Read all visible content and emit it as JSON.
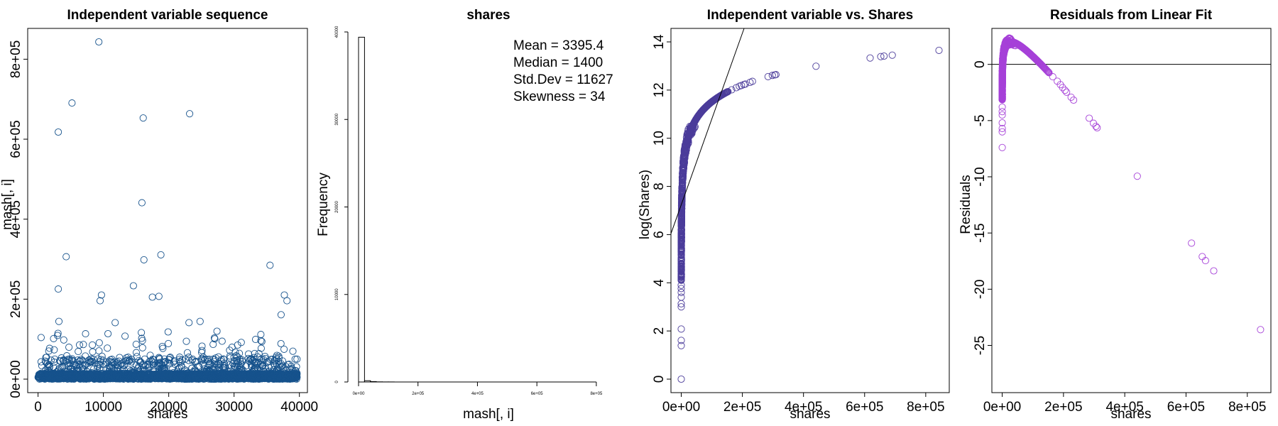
{
  "colors": {
    "panel1": "#16528c",
    "panel3": "#4b3c9a",
    "panel4": "#a641d8"
  },
  "chart_data": [
    {
      "type": "scatter",
      "title": "Independent variable sequence",
      "xlabel": "shares",
      "ylabel": "mash[, i]",
      "xlim": [
        0,
        39644
      ],
      "ylim": [
        0,
        843300
      ],
      "xticks": [
        "0",
        "10000",
        "20000",
        "30000",
        "40000"
      ],
      "yticks": [
        "0e+00",
        "2e+05",
        "4e+05",
        "6e+05",
        "8e+05"
      ],
      "n_points": 39644,
      "highlighted_points": [
        {
          "x": 9300,
          "y": 843300
        },
        {
          "x": 5200,
          "y": 690400
        },
        {
          "x": 3100,
          "y": 617900
        },
        {
          "x": 23200,
          "y": 663600
        },
        {
          "x": 16100,
          "y": 652900
        },
        {
          "x": 15900,
          "y": 441000
        },
        {
          "x": 4300,
          "y": 306100
        },
        {
          "x": 16200,
          "y": 298400
        },
        {
          "x": 18800,
          "y": 310800
        },
        {
          "x": 35500,
          "y": 284700
        },
        {
          "x": 3100,
          "y": 225300
        },
        {
          "x": 9700,
          "y": 210300
        },
        {
          "x": 14600,
          "y": 233400
        },
        {
          "x": 37700,
          "y": 210300
        },
        {
          "x": 17500,
          "y": 205000
        },
        {
          "x": 38100,
          "y": 196000
        },
        {
          "x": 9500,
          "y": 196000
        },
        {
          "x": 18500,
          "y": 207000
        },
        {
          "x": 3200,
          "y": 144400
        },
        {
          "x": 24800,
          "y": 144400
        },
        {
          "x": 37200,
          "y": 161000
        },
        {
          "x": 11800,
          "y": 141400
        },
        {
          "x": 23100,
          "y": 141400
        }
      ]
    },
    {
      "type": "bar",
      "title": "shares",
      "xlabel": "mash[, i]",
      "ylabel": "Frequency",
      "xlim": [
        0,
        860000
      ],
      "ylim": [
        0,
        40000
      ],
      "xticks": [
        "0e+00",
        "2e+05",
        "4e+05",
        "6e+05",
        "8e+05"
      ],
      "yticks": [
        "0",
        "10000",
        "20000",
        "30000",
        "40000"
      ],
      "bin_width": 20000,
      "values": [
        39400,
        150,
        45,
        15,
        8,
        5,
        3,
        2,
        2,
        1,
        1,
        1,
        1,
        1,
        1,
        1,
        1,
        0,
        0,
        0,
        0,
        0,
        0,
        0,
        0,
        0,
        0,
        0,
        0,
        0,
        0,
        1,
        0,
        1,
        1,
        0,
        0,
        0,
        0,
        0,
        0,
        0,
        1
      ],
      "stats": [
        "Mean = 3395.4",
        "Median = 1400",
        "Std.Dev = 11627",
        "Skewness = 34"
      ]
    },
    {
      "type": "scatter",
      "title": "Independent variable vs. Shares",
      "xlabel": "shares",
      "ylabel": "log(Shares)",
      "xlim": [
        0,
        843300
      ],
      "ylim": [
        0,
        14
      ],
      "xticks": [
        "0e+00",
        "2e+05",
        "4e+05",
        "6e+05",
        "8e+05"
      ],
      "yticks": [
        "0",
        "2",
        "4",
        "6",
        "8",
        "10",
        "12",
        "14"
      ],
      "n_points": 39644,
      "fit_line": {
        "intercept": 7.24,
        "slope": 3.56e-05
      },
      "highlighted_points": [
        {
          "x": 150000,
          "y": 11.92
        },
        {
          "x": 165000,
          "y": 12.01
        },
        {
          "x": 180000,
          "y": 12.1
        },
        {
          "x": 190000,
          "y": 12.16
        },
        {
          "x": 197000,
          "y": 12.19
        },
        {
          "x": 205000,
          "y": 12.23
        },
        {
          "x": 210000,
          "y": 12.25
        },
        {
          "x": 225000,
          "y": 12.32
        },
        {
          "x": 233000,
          "y": 12.36
        },
        {
          "x": 284000,
          "y": 12.56
        },
        {
          "x": 298000,
          "y": 12.61
        },
        {
          "x": 306000,
          "y": 12.63
        },
        {
          "x": 310000,
          "y": 12.64
        },
        {
          "x": 441000,
          "y": 12.99
        },
        {
          "x": 617900,
          "y": 13.33
        },
        {
          "x": 652900,
          "y": 13.39
        },
        {
          "x": 663600,
          "y": 13.41
        },
        {
          "x": 690400,
          "y": 13.45
        },
        {
          "x": 843300,
          "y": 13.65
        }
      ]
    },
    {
      "type": "scatter",
      "title": "Residuals from Linear Fit",
      "xlabel": "shares",
      "ylabel": "Residuals",
      "xlim": [
        0,
        843300
      ],
      "ylim": [
        -28,
        2
      ],
      "xticks": [
        "0e+00",
        "2e+05",
        "4e+05",
        "6e+05",
        "8e+05"
      ],
      "yticks": [
        "0",
        "-5",
        "-10",
        "-15",
        "-20",
        "-25"
      ],
      "n_points": 39644,
      "highlighted_points": [
        {
          "x": 150000,
          "y": -0.66
        },
        {
          "x": 165000,
          "y": -1.1
        },
        {
          "x": 180000,
          "y": -1.5
        },
        {
          "x": 190000,
          "y": -1.8
        },
        {
          "x": 197000,
          "y": -2.06
        },
        {
          "x": 205000,
          "y": -2.31
        },
        {
          "x": 210000,
          "y": -2.47
        },
        {
          "x": 225000,
          "y": -2.92
        },
        {
          "x": 233000,
          "y": -3.18
        },
        {
          "x": 284000,
          "y": -4.79
        },
        {
          "x": 298000,
          "y": -5.24
        },
        {
          "x": 306000,
          "y": -5.51
        },
        {
          "x": 310000,
          "y": -5.64
        },
        {
          "x": 441000,
          "y": -9.95
        },
        {
          "x": 617900,
          "y": -15.9
        },
        {
          "x": 652900,
          "y": -17.1
        },
        {
          "x": 663600,
          "y": -17.46
        },
        {
          "x": 690400,
          "y": -18.37
        },
        {
          "x": 843300,
          "y": -23.6
        }
      ]
    }
  ]
}
